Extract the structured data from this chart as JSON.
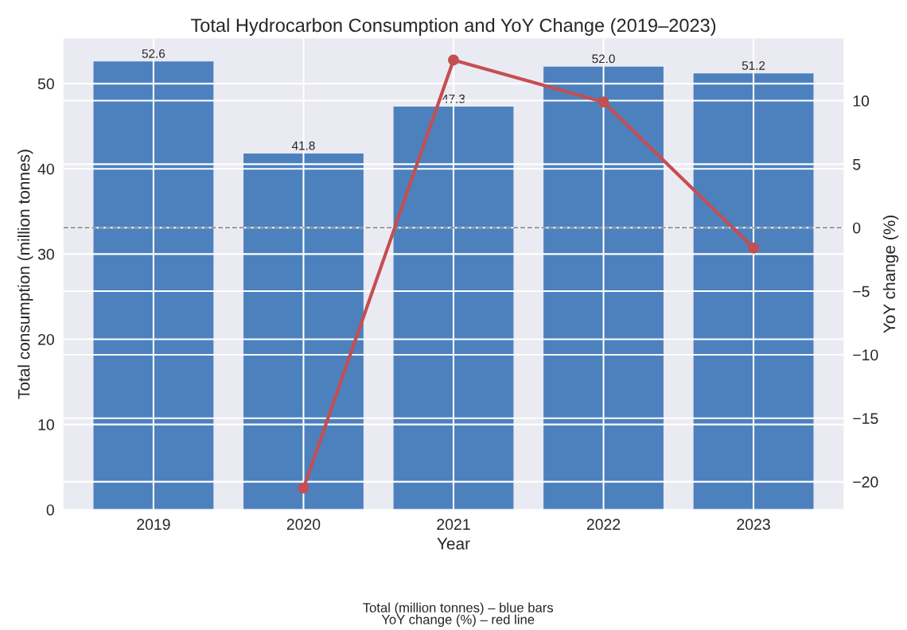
{
  "chart_data": {
    "type": "bar",
    "title": "Total Hydrocarbon Consumption and YoY Change (2019–2023)",
    "xlabel": "Year",
    "ylabel": "Total consumption (million tonnes)",
    "y2label": "YoY change (%)",
    "categories": [
      "2019",
      "2020",
      "2021",
      "2022",
      "2023"
    ],
    "series": [
      {
        "color": "#4c81be",
        "values": [
          52.6,
          41.8,
          47.3,
          52.0,
          51.2
        ],
        "value_labels": [
          "52.6",
          "41.8",
          "47.3",
          "52.0",
          "51.2"
        ]
      },
      {
        "type": "line",
        "axis": "y2",
        "color": "#c44e52",
        "marker": "circle",
        "line_style": "solid",
        "values": [
          null,
          -20.5,
          13.2,
          9.9,
          -1.6
        ]
      }
    ],
    "ylim": [
      0,
      55.3
    ],
    "yticks": [
      0,
      10,
      20,
      30,
      40,
      50
    ],
    "y2lim": [
      -22.2,
      14.9
    ],
    "y2ticks": [
      {
        "value": -20,
        "label": "−20"
      },
      {
        "value": -15,
        "label": "−15"
      },
      {
        "value": -10,
        "label": "−10"
      },
      {
        "value": -5,
        "label": "−5"
      },
      0,
      5,
      10
    ],
    "ref_lines": [
      {
        "axis": "y2",
        "value": 0,
        "color": "#808080",
        "line_style": "dashed"
      }
    ],
    "grid": true,
    "annotations": [
      "Total (million tonnes) – blue bars\nYoY change (%) – red line"
    ]
  }
}
